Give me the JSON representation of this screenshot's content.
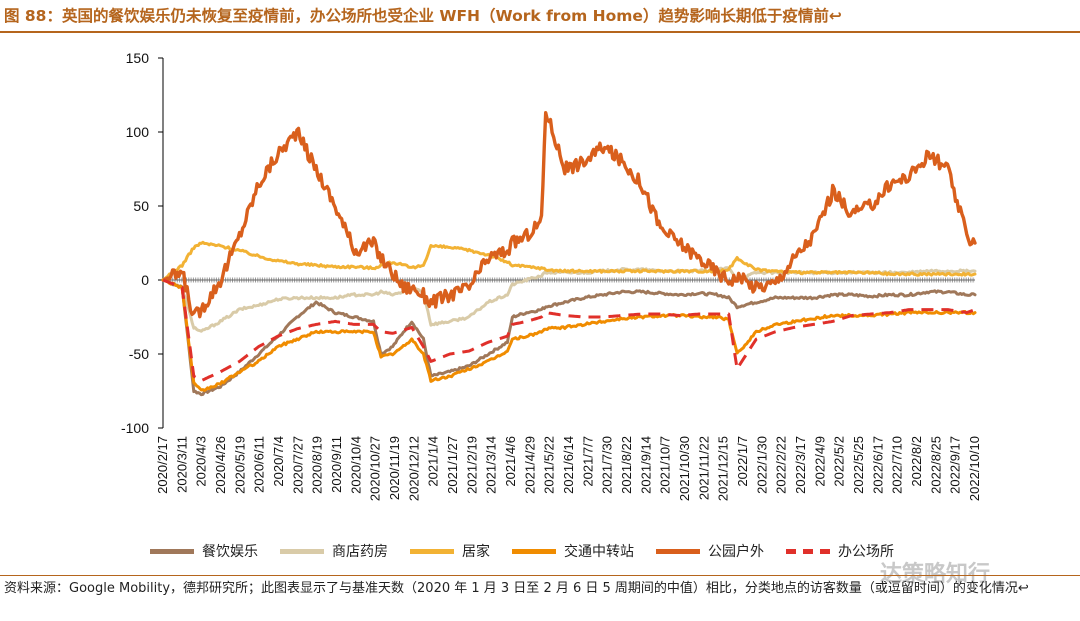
{
  "title": "图 88：英国的餐饮娱乐仍未恢复至疫情前，办公场所也受企业 WFH（Work from Home）趋势影响长期低于疫情前↩",
  "source": "资料来源：Google Mobility，德邦研究所；此图表显示了与基准天数（2020 年 1 月 3 日至 2 月 6 日 5 周期间的中值）相比，分类地点的访客数量（或逗留时间）的变化情况↩",
  "watermark": "达策略知行",
  "chart_data": {
    "type": "line",
    "title": "",
    "xlabel": "",
    "ylabel": "",
    "ylim": [
      -100,
      150
    ],
    "yticks": [
      -100,
      -50,
      0,
      50,
      100,
      150
    ],
    "grid": false,
    "legend_position": "bottom",
    "x_tick_labels": [
      "2020/2/17",
      "2020/3/11",
      "2020/4/3",
      "2020/4/26",
      "2020/5/19",
      "2020/6/11",
      "2020/7/4",
      "2020/7/27",
      "2020/8/19",
      "2020/9/11",
      "2020/10/4",
      "2020/10/27",
      "2020/11/19",
      "2020/12/12",
      "2021/1/4",
      "2021/1/27",
      "2021/2/19",
      "2021/3/14",
      "2021/4/6",
      "2021/4/29",
      "2021/5/22",
      "2021/6/14",
      "2021/7/7",
      "2021/7/30",
      "2021/8/22",
      "2021/9/14",
      "2021/10/7",
      "2021/10/30",
      "2021/11/22",
      "2021/12/15",
      "2022/1/7",
      "2022/1/30",
      "2022/2/22",
      "2022/3/17",
      "2022/4/9",
      "2022/5/2",
      "2022/5/25",
      "2022/6/17",
      "2022/7/10",
      "2022/8/2",
      "2022/8/25",
      "2022/9/17",
      "2022/10/10"
    ],
    "x": [
      "2020-02-17",
      "2020-03-11",
      "2020-03-25",
      "2020-04-03",
      "2020-04-26",
      "2020-05-19",
      "2020-06-11",
      "2020-07-04",
      "2020-07-27",
      "2020-08-19",
      "2020-09-11",
      "2020-10-04",
      "2020-10-27",
      "2020-11-05",
      "2020-11-19",
      "2020-12-02",
      "2020-12-12",
      "2020-12-26",
      "2021-01-04",
      "2021-01-27",
      "2021-02-19",
      "2021-03-14",
      "2021-04-06",
      "2021-04-12",
      "2021-04-29",
      "2021-05-17",
      "2021-05-22",
      "2021-06-14",
      "2021-07-07",
      "2021-07-30",
      "2021-08-22",
      "2021-09-14",
      "2021-10-07",
      "2021-10-30",
      "2021-11-22",
      "2021-12-15",
      "2021-12-28",
      "2022-01-07",
      "2022-01-30",
      "2022-02-22",
      "2022-03-17",
      "2022-04-09",
      "2022-05-02",
      "2022-05-25",
      "2022-06-17",
      "2022-07-10",
      "2022-08-02",
      "2022-08-25",
      "2022-09-17",
      "2022-10-10",
      "2022-10-20"
    ],
    "series": [
      {
        "name": "餐饮娱乐",
        "color": "#A0785A",
        "dash": false,
        "values": [
          0,
          -5,
          -75,
          -77,
          -72,
          -62,
          -50,
          -38,
          -25,
          -15,
          -22,
          -25,
          -28,
          -50,
          -45,
          -35,
          -28,
          -40,
          -65,
          -62,
          -58,
          -50,
          -42,
          -25,
          -22,
          -20,
          -18,
          -15,
          -12,
          -10,
          -8,
          -8,
          -9,
          -10,
          -9,
          -10,
          -12,
          -18,
          -15,
          -12,
          -12,
          -12,
          -10,
          -10,
          -11,
          -10,
          -10,
          -8,
          -8,
          -10,
          -10
        ]
      },
      {
        "name": "商店药房",
        "color": "#D9CBA8",
        "dash": false,
        "values": [
          0,
          -5,
          -32,
          -35,
          -28,
          -20,
          -17,
          -13,
          -12,
          -12,
          -12,
          -10,
          -10,
          -8,
          -10,
          -8,
          -5,
          -8,
          -30,
          -28,
          -25,
          -15,
          -10,
          -3,
          0,
          3,
          5,
          5,
          5,
          6,
          7,
          7,
          6,
          6,
          6,
          7,
          8,
          0,
          5,
          5,
          5,
          5,
          5,
          5,
          5,
          5,
          5,
          6,
          6,
          6,
          6
        ]
      },
      {
        "name": "居家",
        "color": "#F2B234",
        "dash": false,
        "values": [
          0,
          10,
          22,
          25,
          23,
          20,
          16,
          13,
          11,
          10,
          9,
          9,
          8,
          10,
          12,
          10,
          8,
          10,
          23,
          22,
          20,
          17,
          12,
          10,
          9,
          8,
          7,
          6,
          6,
          6,
          6,
          6,
          6,
          6,
          6,
          6,
          7,
          15,
          7,
          6,
          5,
          5,
          5,
          5,
          5,
          4,
          4,
          4,
          4,
          4,
          4
        ]
      },
      {
        "name": "交通中转站",
        "color": "#F08C00",
        "dash": false,
        "values": [
          0,
          -5,
          -70,
          -75,
          -70,
          -62,
          -55,
          -45,
          -40,
          -35,
          -35,
          -35,
          -35,
          -52,
          -50,
          -45,
          -40,
          -50,
          -68,
          -65,
          -60,
          -55,
          -48,
          -40,
          -38,
          -35,
          -33,
          -32,
          -30,
          -28,
          -26,
          -25,
          -24,
          -24,
          -25,
          -25,
          -27,
          -50,
          -35,
          -30,
          -28,
          -26,
          -24,
          -24,
          -24,
          -23,
          -22,
          -22,
          -22,
          -22,
          -22
        ]
      },
      {
        "name": "公园户外",
        "color": "#D95F1C",
        "dash": false,
        "values": [
          0,
          5,
          -25,
          -20,
          0,
          30,
          65,
          85,
          100,
          75,
          50,
          20,
          25,
          15,
          5,
          -5,
          -5,
          -10,
          -15,
          -10,
          -5,
          15,
          20,
          25,
          30,
          40,
          115,
          75,
          80,
          90,
          80,
          65,
          35,
          25,
          15,
          5,
          0,
          2,
          -5,
          -2,
          15,
          30,
          60,
          45,
          50,
          65,
          70,
          85,
          75,
          30,
          25
        ]
      },
      {
        "name": "办公场所",
        "color": "#E0302A",
        "dash": true,
        "values": [
          0,
          -5,
          -65,
          -68,
          -62,
          -55,
          -45,
          -38,
          -33,
          -30,
          -28,
          -30,
          -30,
          -35,
          -36,
          -34,
          -32,
          -45,
          -55,
          -50,
          -48,
          -42,
          -38,
          -30,
          -28,
          -25,
          -22,
          -24,
          -25,
          -25,
          -24,
          -23,
          -23,
          -24,
          -23,
          -23,
          -23,
          -60,
          -40,
          -35,
          -32,
          -30,
          -28,
          -24,
          -23,
          -22,
          -20,
          -20,
          -20,
          -22,
          -20
        ]
      }
    ]
  }
}
